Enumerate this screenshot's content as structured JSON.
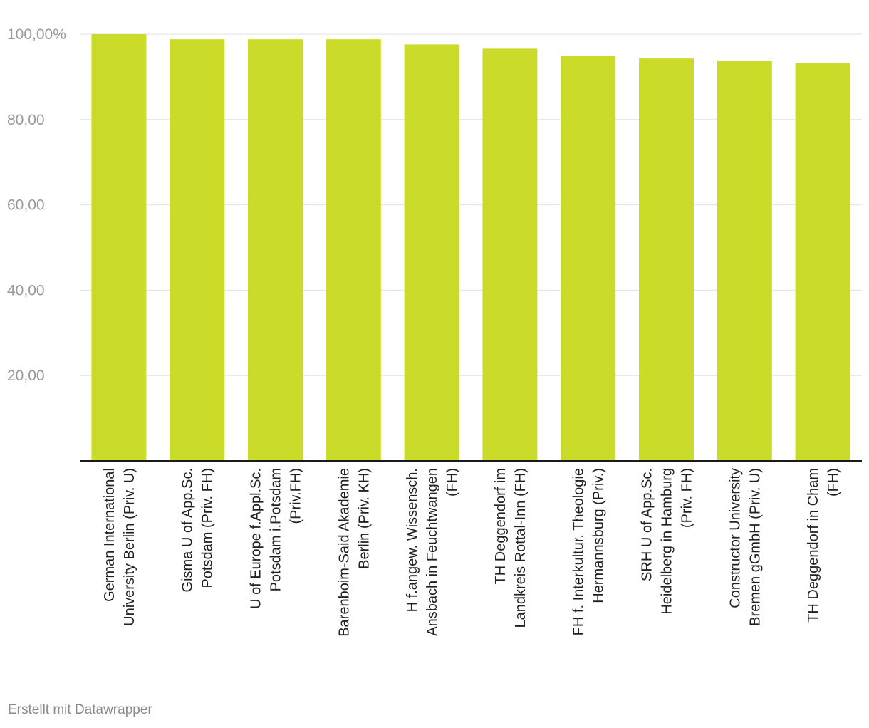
{
  "chart_data": {
    "type": "bar",
    "orientation": "vertical",
    "categories": [
      [
        "German International",
        "University Berlin (Priv. U)"
      ],
      [
        "Gisma U of App.Sc.",
        "Potsdam (Priv. FH)"
      ],
      [
        "U of Europe f.Appl.Sc.",
        "Potsdam i.Potsdam",
        "(Priv.FH)"
      ],
      [
        "Barenboim-Said Akademie",
        "Berlin (Priv. KH)"
      ],
      [
        "H f.angew. Wissensch.",
        "Ansbach in Feuchtwangen",
        "(FH)"
      ],
      [
        "TH Deggendorf im",
        "Landkreis Rottal-Inn (FH)"
      ],
      [
        "FH f. Interkultur. Theologie",
        "Hermannsburg (Priv.)"
      ],
      [
        "SRH U of App.Sc.",
        "Heidelberg in Hamburg",
        "(Priv. FH)"
      ],
      [
        "Constructor University",
        "Bremen gGmbH (Priv. U)"
      ],
      [
        "TH Deggendorf in Cham",
        "(FH)"
      ]
    ],
    "values": [
      100.0,
      98.8,
      98.8,
      98.8,
      97.6,
      96.6,
      95.0,
      94.3,
      93.8,
      93.3
    ],
    "ylim": [
      0,
      100
    ],
    "yticks": [
      20,
      40,
      60,
      80,
      100
    ],
    "ytick_labels": [
      "20,00",
      "40,00",
      "60,00",
      "80,00",
      "100,00%"
    ],
    "grid": true,
    "bar_color": "#cbdb2a",
    "title": "",
    "xlabel": "",
    "ylabel": ""
  },
  "footer": {
    "credit": "Erstellt mit Datawrapper"
  }
}
